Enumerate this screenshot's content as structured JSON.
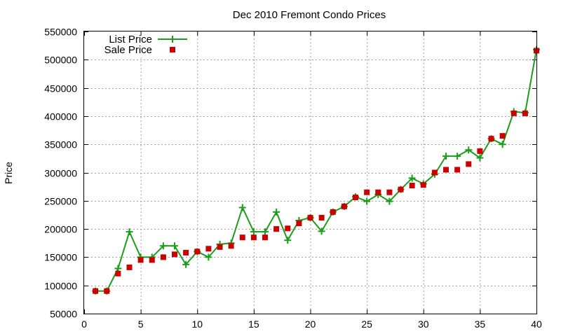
{
  "chart_data": {
    "type": "line",
    "title": "Dec 2010 Fremont Condo Prices",
    "xlabel": "",
    "ylabel": "Price",
    "xlim": [
      0,
      40
    ],
    "ylim": [
      50000,
      550000
    ],
    "xticks": [
      0,
      5,
      10,
      15,
      20,
      25,
      30,
      35,
      40
    ],
    "yticks": [
      50000,
      100000,
      150000,
      200000,
      250000,
      300000,
      350000,
      400000,
      450000,
      500000,
      550000
    ],
    "grid": true,
    "legend_position": "top-left",
    "series": [
      {
        "name": "List Price",
        "style": "line+plus",
        "color": "#1a9e1a",
        "x": [
          1,
          2,
          3,
          4,
          5,
          6,
          7,
          8,
          9,
          10,
          11,
          12,
          13,
          14,
          15,
          16,
          17,
          18,
          19,
          20,
          21,
          22,
          23,
          24,
          25,
          26,
          27,
          28,
          29,
          30,
          31,
          32,
          33,
          34,
          35,
          36,
          37,
          38,
          39,
          40
        ],
        "y": [
          90000,
          90000,
          130000,
          195000,
          150000,
          150000,
          170000,
          170000,
          137000,
          160000,
          150000,
          173000,
          175000,
          238000,
          195000,
          195000,
          230000,
          180000,
          215000,
          220000,
          196000,
          230000,
          240000,
          257000,
          249000,
          261000,
          249000,
          270000,
          290000,
          280000,
          297000,
          329000,
          329000,
          340000,
          326000,
          360000,
          350000,
          408000,
          406000,
          518000
        ]
      },
      {
        "name": "Sale Price",
        "style": "square",
        "color": "#cc0000",
        "x": [
          1,
          2,
          3,
          4,
          5,
          6,
          7,
          8,
          9,
          10,
          11,
          12,
          13,
          14,
          15,
          16,
          17,
          18,
          19,
          20,
          21,
          22,
          23,
          24,
          25,
          26,
          27,
          28,
          29,
          30,
          31,
          32,
          33,
          34,
          35,
          36,
          37,
          38,
          39,
          40
        ],
        "y": [
          90000,
          90000,
          121000,
          132000,
          145000,
          145000,
          150000,
          155000,
          158000,
          160000,
          165000,
          168000,
          170000,
          185000,
          185000,
          185000,
          200000,
          201000,
          210000,
          220000,
          220000,
          230000,
          240000,
          256000,
          265000,
          265000,
          265000,
          270000,
          277000,
          278000,
          300000,
          305000,
          305000,
          315000,
          338000,
          360000,
          365000,
          405000,
          405000,
          516000
        ]
      }
    ]
  }
}
